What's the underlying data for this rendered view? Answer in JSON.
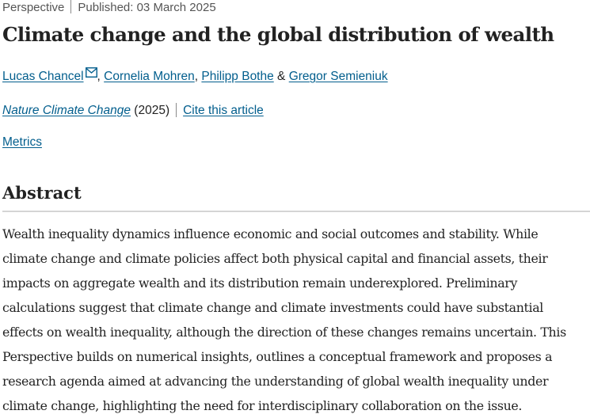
{
  "article": {
    "type": "Perspective",
    "published": "Published: 03 March 2025",
    "title": "Climate change and the global distribution of wealth"
  },
  "authors": {
    "list": [
      "Lucas Chancel",
      "Cornelia Mohren",
      "Philipp Bothe",
      "Gregor Semieniuk"
    ],
    "comma": ",",
    "ampersand": "&",
    "corresponding_icon": "mail-icon"
  },
  "journal": {
    "name": "Nature Climate Change",
    "year": "(2025)",
    "cite_label": "Cite this article"
  },
  "metrics": {
    "label": "Metrics"
  },
  "abstract": {
    "heading": "Abstract",
    "lines": [
      "Wealth inequality dynamics influence economic and social outcomes and stability. While",
      "climate change and climate policies affect both physical capital and financial assets, their",
      "impacts on aggregate wealth and its distribution remain underexplored. Preliminary",
      "calculations suggest that climate change and climate investments could have substantial",
      "effects on wealth inequality, although the direction of these changes remains uncertain. This",
      "Perspective builds on numerical insights, outlines a conceptual framework and proposes a",
      "research agenda aimed at advancing the understanding of global wealth inequality under",
      "climate change, highlighting the need for interdisciplinary collaboration on the issue."
    ]
  },
  "colors": {
    "link": "#025e8d",
    "text": "#222222",
    "muted": "#555555",
    "rule": "#d5d5d5"
  }
}
